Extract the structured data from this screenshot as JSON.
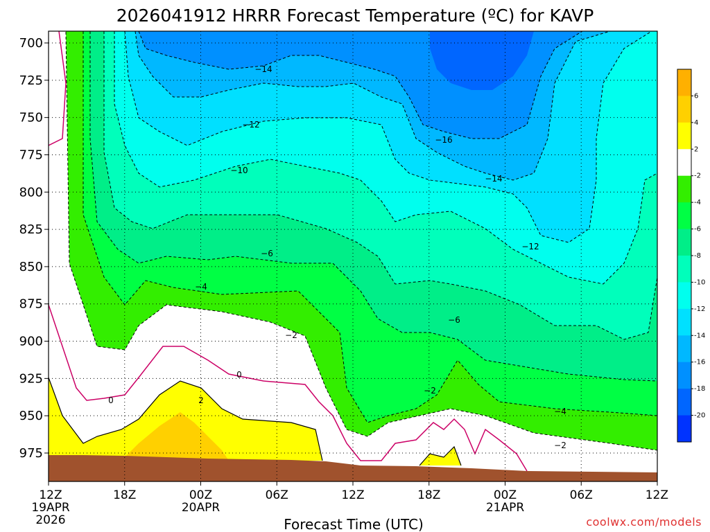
{
  "title": "2026041912 HRRR Forecast Temperature (ºC) for KAVP",
  "xlabel": "Forecast Time (UTC)",
  "credit": "coolwx.com/models",
  "y_ticks": [
    "700",
    "725",
    "750",
    "775",
    "800",
    "825",
    "850",
    "875",
    "900",
    "925",
    "950",
    "975"
  ],
  "x_ticks": [
    {
      "line1": "12Z",
      "line2": "19APR",
      "line3": "2026"
    },
    {
      "line1": "18Z",
      "line2": "",
      "line3": ""
    },
    {
      "line1": "00Z",
      "line2": "20APR",
      "line3": ""
    },
    {
      "line1": "06Z",
      "line2": "",
      "line3": ""
    },
    {
      "line1": "12Z",
      "line2": "",
      "line3": ""
    },
    {
      "line1": "18Z",
      "line2": "",
      "line3": ""
    },
    {
      "line1": "00Z",
      "line2": "21APR",
      "line3": ""
    },
    {
      "line1": "06Z",
      "line2": "",
      "line3": ""
    },
    {
      "line1": "12Z",
      "line2": "",
      "line3": ""
    }
  ],
  "colorbar": {
    "labels": [
      "6",
      "4",
      "2",
      "-2",
      "-4",
      "-6",
      "-8",
      "-10",
      "-12",
      "-14",
      "-16",
      "-18",
      "-20"
    ],
    "colors": [
      "#ffb000",
      "#ffd000",
      "#ffff00",
      "#ffffff",
      "#33ee00",
      "#00ff44",
      "#00ee88",
      "#00ffbb",
      "#00ffee",
      "#00e0ff",
      "#00b8ff",
      "#0090ff",
      "#0066ff",
      "#0033ff"
    ]
  },
  "chart_data": {
    "type": "heatmap",
    "description_variable": "Temperature (ºC)",
    "x_range": [
      "2026-04-19 12Z",
      "2026-04-21 12Z"
    ],
    "y_range_hpa": [
      695,
      987
    ],
    "y_inverted": true,
    "contour_interval_c": 2,
    "contour_labels": [
      "-16",
      "-14",
      "-14",
      "-12",
      "-12",
      "-10",
      "-6",
      "-4",
      "-6",
      "-2",
      "-2",
      "0",
      "0",
      "2",
      "-4",
      "-2"
    ],
    "palette": {
      "ground": "#a0522d",
      "zero_line": "#cc0066"
    }
  }
}
